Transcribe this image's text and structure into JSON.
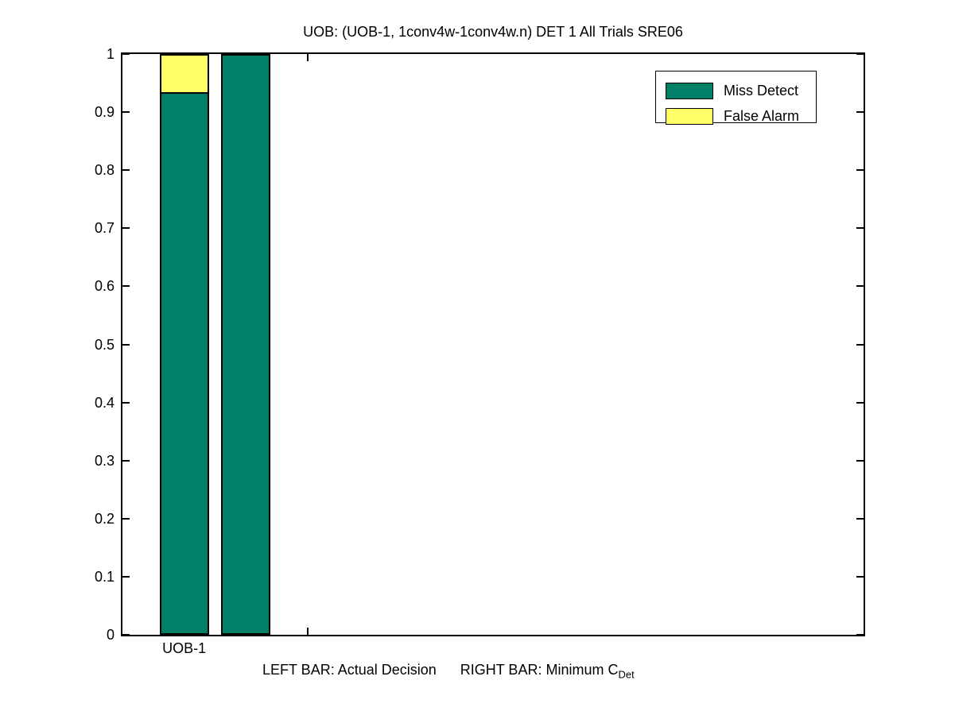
{
  "title": "UOB: (UOB-1, 1conv4w-1conv4w.n) DET 1 All Trials SRE06",
  "legend": {
    "items": [
      {
        "label": "Miss Detect",
        "color": "#008066"
      },
      {
        "label": "False Alarm",
        "color": "#ffff66"
      }
    ]
  },
  "footer": {
    "left_text": "LEFT BAR: Actual Decision",
    "right_text": "RIGHT BAR: Minimum C",
    "subscript": "Det"
  },
  "chart_data": {
    "type": "bar",
    "stacked": true,
    "title": "UOB: (UOB-1, 1conv4w-1conv4w.n) DET 1 All Trials SRE06",
    "xlabel": "",
    "ylabel": "",
    "ylim": [
      0,
      1
    ],
    "xlim": [
      0,
      12
    ],
    "grid": false,
    "legend_entries": [
      "Miss Detect",
      "False Alarm"
    ],
    "legend_position": "upper right",
    "yticks": [
      0,
      0.1,
      0.2,
      0.3,
      0.4,
      0.5,
      0.6,
      0.7,
      0.8,
      0.9,
      1
    ],
    "ytick_labels": [
      "0",
      "0.1",
      "0.2",
      "0.3",
      "0.4",
      "0.5",
      "0.6",
      "0.7",
      "0.8",
      "0.9",
      "1"
    ],
    "visible_xticks": [
      1,
      2,
      3
    ],
    "bar_width_units": 0.8,
    "categories": [
      "UOB-1"
    ],
    "category_positions": [
      1
    ],
    "bars": [
      {
        "x": 1,
        "label": "Actual Decision",
        "segments": [
          {
            "series": "Miss Detect",
            "value": 0.935
          },
          {
            "series": "False Alarm",
            "value": 0.065
          }
        ]
      },
      {
        "x": 2,
        "label": "Minimum CDet",
        "segments": [
          {
            "series": "Miss Detect",
            "value": 1.0
          }
        ]
      }
    ],
    "annotation": "LEFT BAR: Actual Decision     RIGHT BAR: Minimum C_Det"
  }
}
